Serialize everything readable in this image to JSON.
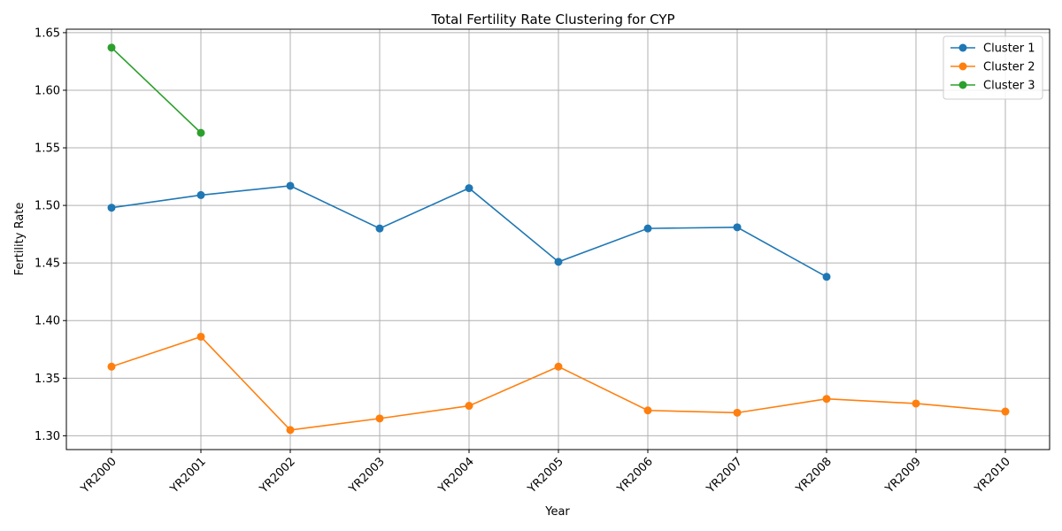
{
  "chart_data": {
    "type": "line",
    "title": "Total Fertility Rate Clustering for CYP",
    "xlabel": "Year",
    "ylabel": "Fertility Rate",
    "categories": [
      "YR2000",
      "YR2001",
      "YR2002",
      "YR2003",
      "YR2004",
      "YR2005",
      "YR2006",
      "YR2007",
      "YR2008",
      "YR2009",
      "YR2010"
    ],
    "ylim": [
      1.288,
      1.653
    ],
    "yticks": [
      "1.30",
      "1.35",
      "1.40",
      "1.45",
      "1.50",
      "1.55",
      "1.60",
      "1.65"
    ],
    "grid": true,
    "legend_position": "top-right",
    "series": [
      {
        "name": "Cluster 1",
        "color": "#1f77b4",
        "values": [
          1.498,
          1.509,
          1.517,
          1.48,
          1.515,
          1.451,
          1.48,
          1.481,
          1.438,
          null,
          null
        ]
      },
      {
        "name": "Cluster 2",
        "color": "#ff7f0e",
        "values": [
          1.36,
          1.386,
          1.305,
          1.315,
          1.326,
          1.36,
          1.322,
          1.32,
          1.332,
          1.328,
          1.321
        ]
      },
      {
        "name": "Cluster 3",
        "color": "#2ca02c",
        "values": [
          1.637,
          1.563,
          null,
          null,
          null,
          null,
          null,
          null,
          null,
          null,
          null
        ]
      }
    ]
  }
}
